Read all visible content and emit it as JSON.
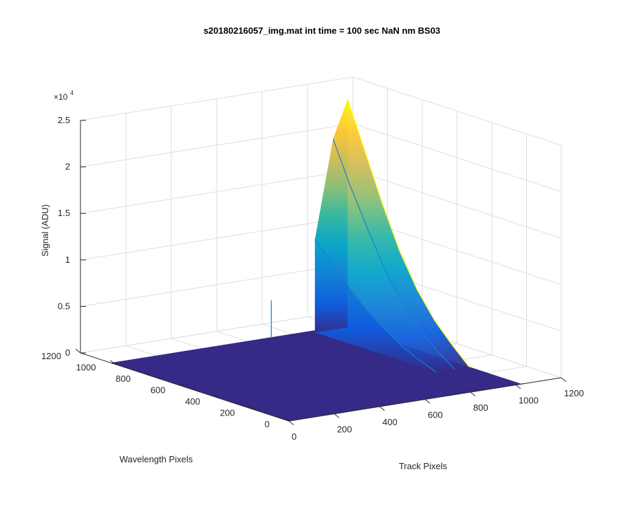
{
  "chart_data": {
    "type": "surface",
    "title": "s20180216057_img.mat int time = 100 sec  NaN nm BS03",
    "xlabel": "Track Pixels",
    "ylabel": "Wavelength Pixels",
    "zlabel": "Signal (ADU)",
    "z_exponent_label": "×10",
    "z_exponent_power": "4",
    "xlim": [
      0,
      1200
    ],
    "ylim": [
      0,
      1200
    ],
    "zlim": [
      0,
      25000
    ],
    "x_ticks": [
      "0",
      "200",
      "400",
      "600",
      "800",
      "1000",
      "1200"
    ],
    "y_ticks": [
      "0",
      "200",
      "400",
      "600",
      "800",
      "1000",
      "1200"
    ],
    "z_ticks": [
      "0",
      "0.5",
      "1",
      "1.5",
      "2",
      "2.5"
    ],
    "grid": true,
    "colormap": "parula",
    "colors": [
      "#352a87",
      "#0f5cdd",
      "#1481d6",
      "#06a4ca",
      "#2eb7a4",
      "#87bf77",
      "#d1bb59",
      "#fec832",
      "#f9fb0e"
    ],
    "surface": {
      "baseline_signal": 0,
      "data_x_range": [
        0,
        1024
      ],
      "data_y_range": [
        0,
        1024
      ],
      "peak_track_pixel": 1024,
      "peak_wavelength_pixel": 1000,
      "peak_signal": 24500,
      "profiles_along_wavelength": [
        {
          "track_pixel": 1024,
          "points": [
            [
              1000,
              24500
            ],
            [
              900,
              19500
            ],
            [
              800,
              14500
            ],
            [
              700,
              10000
            ],
            [
              600,
              6500
            ],
            [
              500,
              3800
            ],
            [
              400,
              1800
            ],
            [
              300,
              0
            ]
          ]
        },
        {
          "track_pixel": 960,
          "points": [
            [
              1000,
              20500
            ],
            [
              900,
              16000
            ],
            [
              800,
              12000
            ],
            [
              700,
              8200
            ],
            [
              600,
              5300
            ],
            [
              500,
              3100
            ],
            [
              400,
              1400
            ],
            [
              300,
              0
            ]
          ]
        },
        {
          "track_pixel": 880,
          "points": [
            [
              1000,
              10000
            ],
            [
              900,
              8000
            ],
            [
              800,
              6000
            ],
            [
              700,
              4200
            ],
            [
              600,
              2800
            ],
            [
              500,
              1600
            ],
            [
              400,
              700
            ],
            [
              300,
              0
            ]
          ]
        }
      ]
    }
  }
}
